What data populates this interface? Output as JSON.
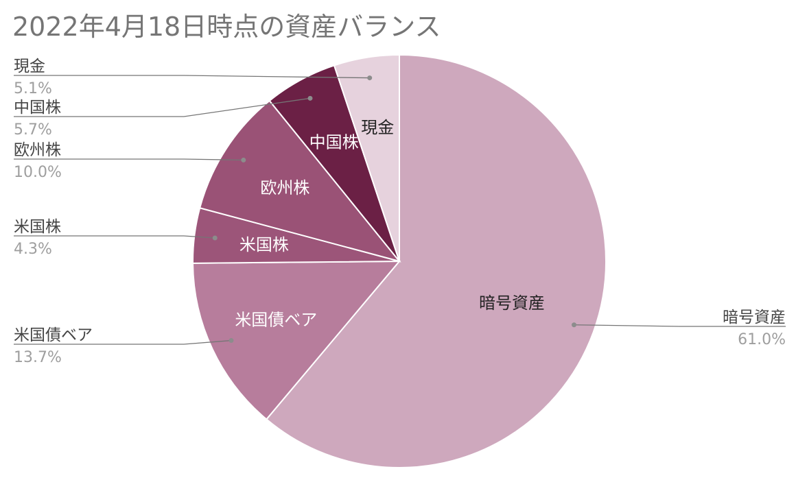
{
  "chart_data": {
    "type": "pie",
    "title": "2022年4月18日時点の資産バランス",
    "slices": [
      {
        "label": "暗号資産",
        "value": 61.0,
        "pct_label": "61.0%",
        "color": "#cea8bd",
        "inside_text_color": "#222222",
        "legend_side": "right"
      },
      {
        "label": "米国債ベア",
        "value": 13.7,
        "pct_label": "13.7%",
        "color": "#b77d9c",
        "inside_text_color": "#ffffff",
        "legend_side": "left"
      },
      {
        "label": "米国株",
        "value": 4.3,
        "pct_label": "4.3%",
        "color": "#9c5579",
        "inside_text_color": "#ffffff",
        "legend_side": "left"
      },
      {
        "label": "欧州株",
        "value": 10.0,
        "pct_label": "10.0%",
        "color": "#9a5276",
        "inside_text_color": "#ffffff",
        "legend_side": "left"
      },
      {
        "label": "中国株",
        "value": 5.7,
        "pct_label": "5.7%",
        "color": "#6b2045",
        "inside_text_color": "#ffffff",
        "legend_side": "left"
      },
      {
        "label": "現金",
        "value": 5.1,
        "pct_label": "5.1%",
        "color": "#e6d2dd",
        "inside_text_color": "#222222",
        "legend_side": "left"
      }
    ],
    "legend": "callouts-with-leader-lines",
    "label_color": "#444444",
    "pct_color": "#9e9e9e",
    "leader_color": "#757575"
  }
}
